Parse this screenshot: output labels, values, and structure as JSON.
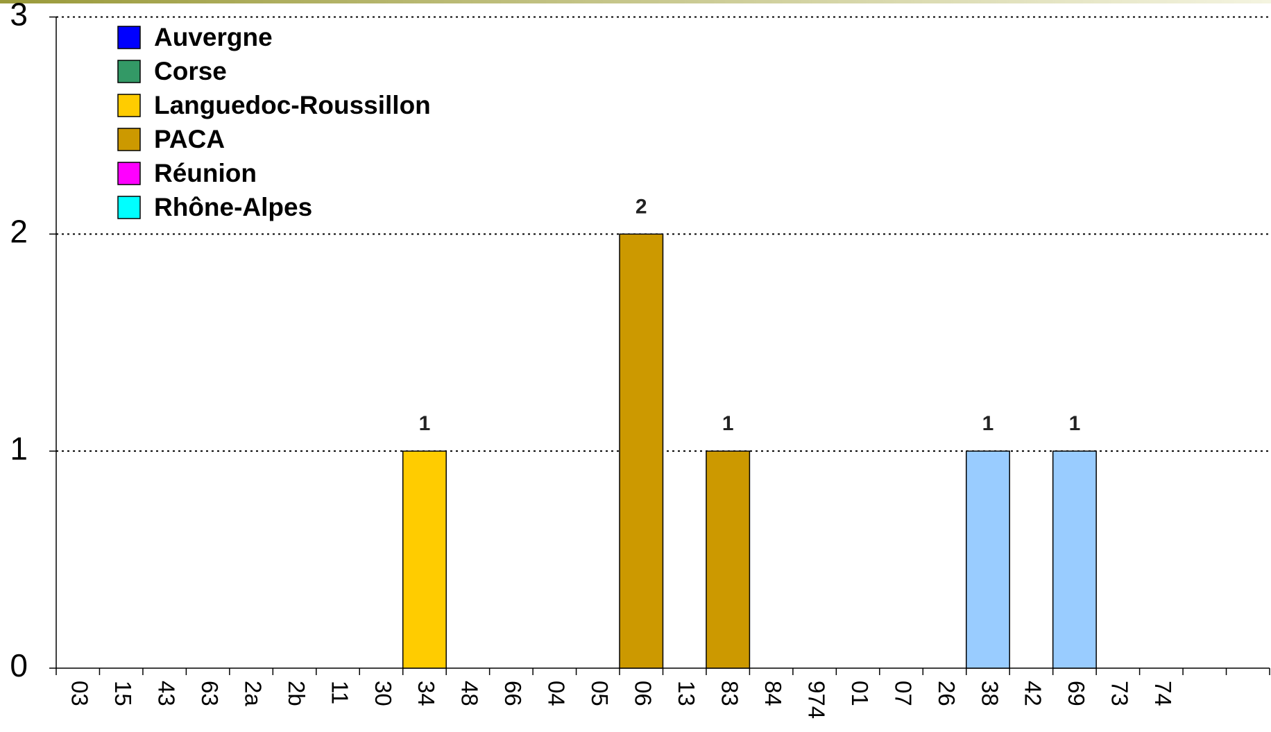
{
  "chart_data": {
    "type": "bar",
    "categories": [
      "03",
      "15",
      "43",
      "63",
      "2a",
      "2b",
      "11",
      "30",
      "34",
      "48",
      "66",
      "04",
      "05",
      "06",
      "13",
      "83",
      "84",
      "974",
      "01",
      "07",
      "26",
      "38",
      "42",
      "69",
      "73",
      "74",
      null,
      null
    ],
    "series": [
      {
        "name": "Auvergne",
        "color": "#0000ff",
        "values": [
          0,
          0,
          0,
          0,
          null,
          null,
          null,
          null,
          null,
          null,
          null,
          null,
          null,
          null,
          null,
          null,
          null,
          null,
          null,
          null,
          null,
          null,
          null,
          null,
          null,
          null,
          null,
          null
        ]
      },
      {
        "name": "Corse",
        "color": "#339966",
        "values": [
          null,
          null,
          null,
          null,
          0,
          0,
          null,
          null,
          null,
          null,
          null,
          null,
          null,
          null,
          null,
          null,
          null,
          null,
          null,
          null,
          null,
          null,
          null,
          null,
          null,
          null,
          null,
          null
        ]
      },
      {
        "name": "Languedoc-Roussillon",
        "color": "#ffcc00",
        "values": [
          null,
          null,
          null,
          null,
          null,
          null,
          0,
          0,
          1,
          0,
          0,
          null,
          null,
          null,
          null,
          null,
          null,
          null,
          null,
          null,
          null,
          null,
          null,
          null,
          null,
          null,
          null,
          null
        ]
      },
      {
        "name": "PACA",
        "color": "#cc9900",
        "values": [
          null,
          null,
          null,
          null,
          null,
          null,
          null,
          null,
          null,
          null,
          null,
          0,
          0,
          2,
          0,
          1,
          0,
          null,
          null,
          null,
          null,
          null,
          null,
          null,
          null,
          null,
          null,
          null
        ]
      },
      {
        "name": "Réunion",
        "color": "#ff00ff",
        "values": [
          null,
          null,
          null,
          null,
          null,
          null,
          null,
          null,
          null,
          null,
          null,
          null,
          null,
          null,
          null,
          null,
          null,
          0,
          null,
          null,
          null,
          null,
          null,
          null,
          null,
          null,
          null,
          null
        ]
      },
      {
        "name": "Rhône-Alpes",
        "color": "#00ffff",
        "bar_color": "#99ccff",
        "values": [
          null,
          null,
          null,
          null,
          null,
          null,
          null,
          null,
          null,
          null,
          null,
          null,
          null,
          null,
          null,
          null,
          null,
          null,
          0,
          0,
          0,
          1,
          0,
          1,
          0,
          0,
          null,
          null
        ]
      }
    ],
    "ylim": [
      0,
      3
    ],
    "yticks": [
      0,
      1,
      2,
      3
    ],
    "grid": true
  }
}
